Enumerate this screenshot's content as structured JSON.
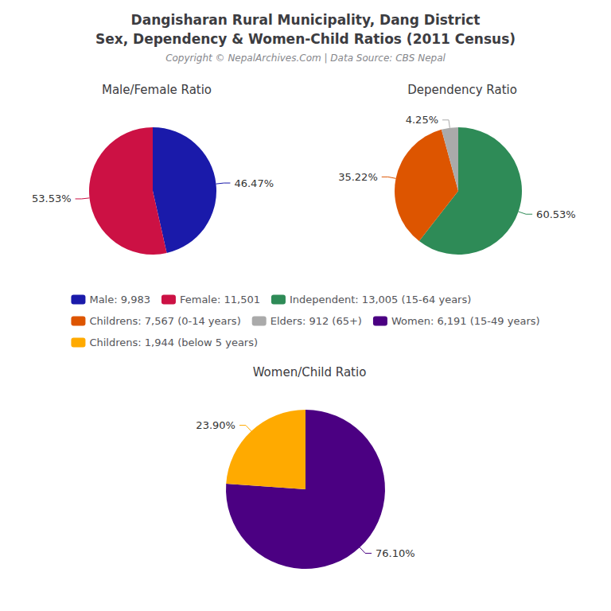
{
  "title": [
    "Dangisharan Rural Municipality, Dang District",
    "Sex, Dependency & Women-Child Ratios (2011 Census)"
  ],
  "subtitle": "Copyright © NepalArchives.Com | Data Source: CBS Nepal",
  "chart_data": [
    {
      "type": "pie",
      "title": "Male/Female Ratio",
      "categories": [
        "Male: 9,983",
        "Female: 11,501"
      ],
      "values": [
        46.47,
        53.53
      ],
      "value_labels": [
        "46.47%",
        "53.53%"
      ],
      "colors": [
        "#1a1aaa",
        "#cc1144"
      ],
      "data_labels": true,
      "legend": "center"
    },
    {
      "type": "pie",
      "title": "Dependency Ratio",
      "categories": [
        "Independent: 13,005 (15-64 years)",
        "Childrens: 7,567 (0-14 years)",
        "Elders: 912 (65+)"
      ],
      "values": [
        60.53,
        35.22,
        4.25
      ],
      "value_labels": [
        "60.53%",
        "35.22%",
        "4.25%"
      ],
      "colors": [
        "#2e8b57",
        "#dd5500",
        "#aaaaaa"
      ],
      "data_labels": true,
      "legend": "center"
    },
    {
      "type": "pie",
      "title": "Women/Child Ratio",
      "categories": [
        "Women: 6,191 (15-49 years)",
        "Childrens: 1,944 (below 5 years)"
      ],
      "values": [
        76.1,
        23.9
      ],
      "value_labels": [
        "76.10%",
        "23.90%"
      ],
      "colors": [
        "#4b0082",
        "#ffaa00"
      ],
      "data_labels": true,
      "legend": "center"
    }
  ]
}
